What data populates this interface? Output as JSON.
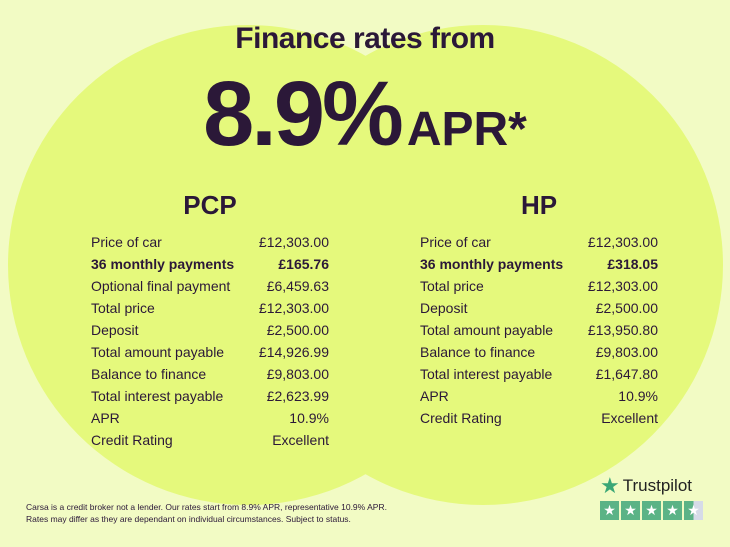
{
  "headline": "Finance rates from",
  "rate": "8.9%",
  "rate_suffix": "APR*",
  "pcp": {
    "title": "PCP",
    "rows": [
      {
        "label": "Price of car",
        "value": "£12,303.00"
      },
      {
        "label": "36 monthly payments",
        "value": "£165.76",
        "bold": true
      },
      {
        "label": "Optional final payment",
        "value": "£6,459.63"
      },
      {
        "label": "Total price",
        "value": "£12,303.00"
      },
      {
        "label": "Deposit",
        "value": "£2,500.00"
      },
      {
        "label": "Total amount payable",
        "value": "£14,926.99"
      },
      {
        "label": "Balance to finance",
        "value": "£9,803.00"
      },
      {
        "label": "Total interest payable",
        "value": "£2,623.99"
      },
      {
        "label": "APR",
        "value": "10.9%"
      },
      {
        "label": "Credit Rating",
        "value": "Excellent"
      }
    ]
  },
  "hp": {
    "title": "HP",
    "rows": [
      {
        "label": "Price of car",
        "value": "£12,303.00"
      },
      {
        "label": "36 monthly payments",
        "value": "£318.05",
        "bold": true
      },
      {
        "label": "Total price",
        "value": "£12,303.00"
      },
      {
        "label": "Deposit",
        "value": "£2,500.00"
      },
      {
        "label": "Total amount payable",
        "value": "£13,950.80"
      },
      {
        "label": "Balance to finance",
        "value": "£9,803.00"
      },
      {
        "label": "Total interest payable",
        "value": "£1,647.80"
      },
      {
        "label": "APR",
        "value": "10.9%"
      },
      {
        "label": "Credit Rating",
        "value": "Excellent"
      }
    ]
  },
  "disclaimer": {
    "line1": "Carsa is a credit broker not a lender. Our rates start from 8.9% APR, representative 10.9% APR.",
    "line2": "Rates may differ as they are dependant on individual circumstances. Subject to status."
  },
  "trustpilot": {
    "name": "Trustpilot",
    "rating_stars": 4.5,
    "star_color": "#5bb386"
  }
}
